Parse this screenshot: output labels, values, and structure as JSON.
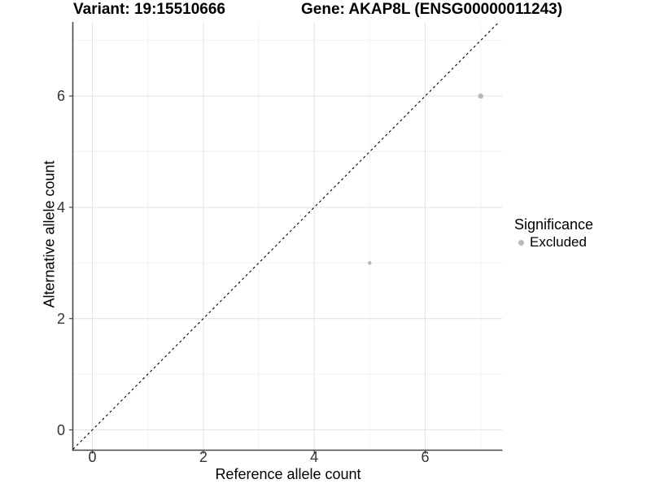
{
  "chart_data": {
    "type": "scatter",
    "title_left": "Variant: 19:15510666",
    "title_right": "Gene: AKAP8L (ENSG00000011243)",
    "xlabel": "Reference allele count",
    "ylabel": "Alternative allele count",
    "x_ticks": [
      0,
      2,
      4,
      6
    ],
    "y_ticks": [
      0,
      2,
      4,
      6
    ],
    "x_minor_ticks": [
      1,
      3,
      5,
      7
    ],
    "y_minor_ticks": [
      1,
      3,
      5,
      7
    ],
    "xlim": [
      -0.35,
      7.39
    ],
    "ylim": [
      -0.37,
      7.33
    ],
    "grid": "major+minor",
    "reference_line": {
      "kind": "identity y=x",
      "style": "dashed",
      "color": "#000000"
    },
    "series": [
      {
        "name": "Excluded",
        "color": "#b8b8b8",
        "points": [
          {
            "x": 5,
            "y": 3,
            "r": 2.2
          },
          {
            "x": 7,
            "y": 6,
            "r": 3.2
          }
        ]
      }
    ],
    "legend": {
      "title": "Significance",
      "position": "right",
      "items": [
        {
          "label": "Excluded",
          "color": "#b8b8b8"
        }
      ]
    },
    "style": {
      "grid_major": "#e4e4e4",
      "grid_minor": "#f1f1f1",
      "axis_line": "#474747",
      "tick_text": "#333333",
      "title_text": "#000000",
      "background": "#ffffff"
    }
  }
}
